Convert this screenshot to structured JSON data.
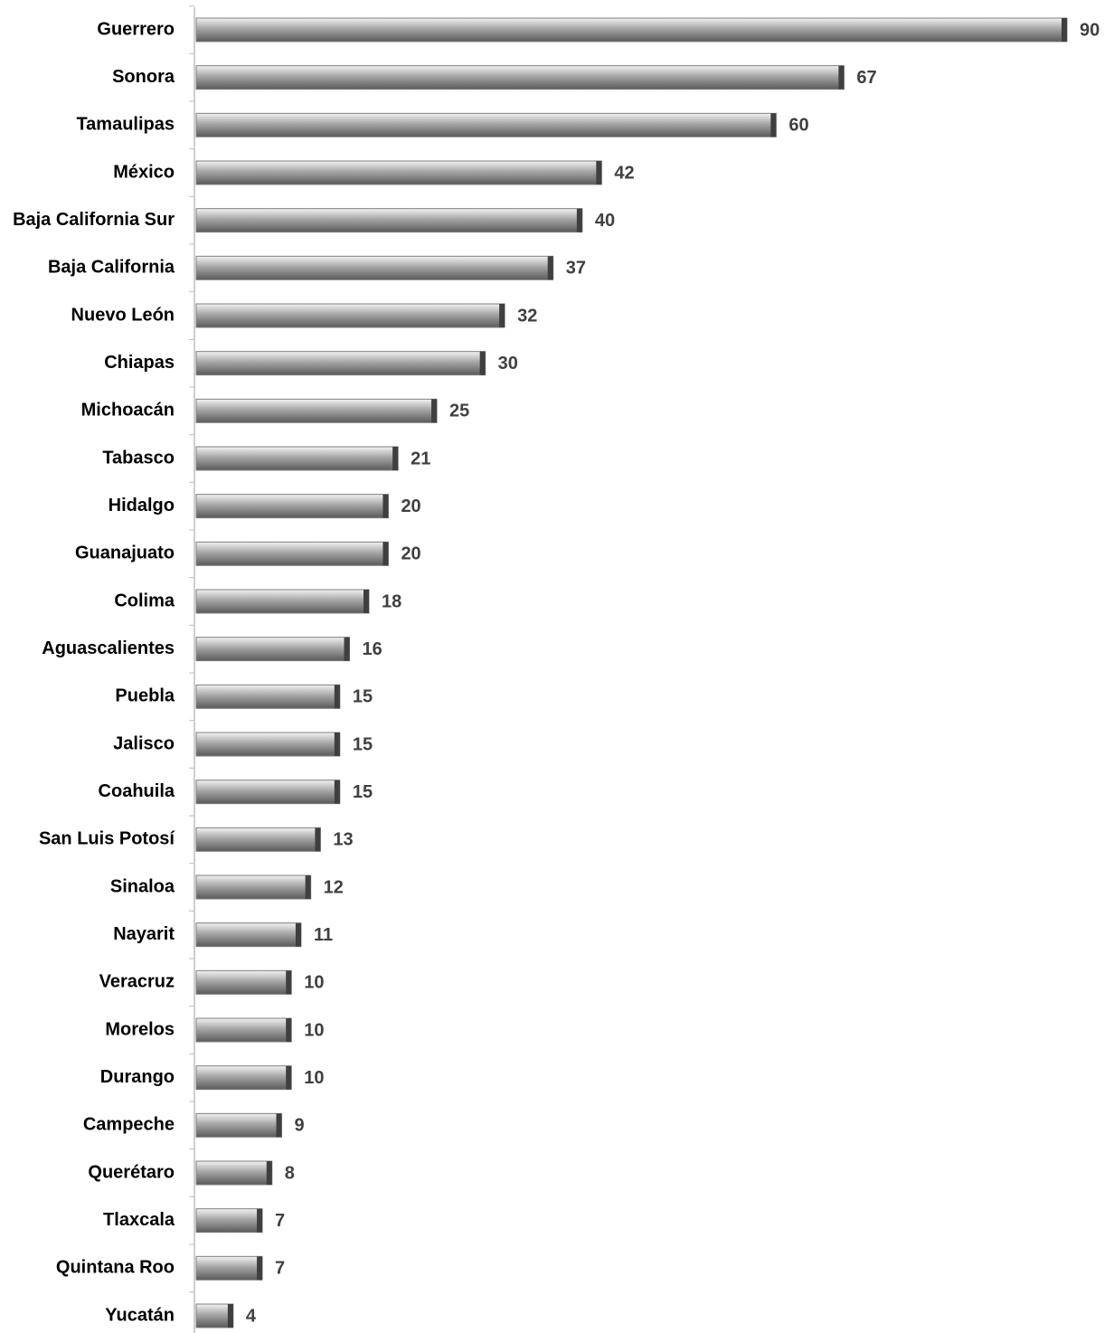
{
  "chart_data": {
    "type": "bar",
    "orientation": "horizontal",
    "color": "#a6a6a6",
    "categories": [
      "Guerrero",
      "Sonora",
      "Tamaulipas",
      "México",
      "Baja California Sur",
      "Baja California",
      "Nuevo León",
      "Chiapas",
      "Michoacán",
      "Tabasco",
      "Hidalgo",
      "Guanajuato",
      "Colima",
      "Aguascalientes",
      "Puebla",
      "Jalisco",
      "Coahuila",
      "San Luis Potosí",
      "Sinaloa",
      "Nayarit",
      "Veracruz",
      "Morelos",
      "Durango",
      "Campeche",
      "Querétaro",
      "Tlaxcala",
      "Quintana Roo",
      "Yucatán"
    ],
    "values": [
      90,
      67,
      60,
      42,
      40,
      37,
      32,
      30,
      25,
      21,
      20,
      20,
      18,
      16,
      15,
      15,
      15,
      13,
      12,
      11,
      10,
      10,
      10,
      9,
      8,
      7,
      7,
      4
    ]
  }
}
